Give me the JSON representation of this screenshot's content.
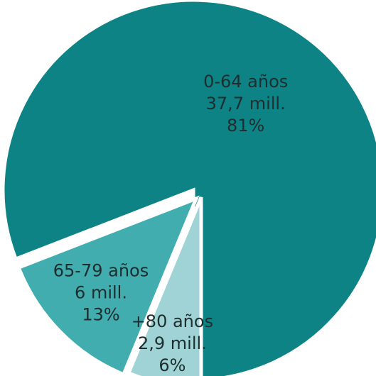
{
  "chart_data": {
    "type": "pie",
    "title": "",
    "slices": [
      {
        "category": "0-64 años",
        "value": 37.7,
        "value_label": "37,7 mill.",
        "percent_label": "81%",
        "color": "#0e8385"
      },
      {
        "category": "+80 años",
        "value": 2.9,
        "value_label": "2,9 mill.",
        "percent_label": "6%",
        "color": "#9fd3d5"
      },
      {
        "category": "65-79 años",
        "value": 6,
        "value_label": "6 mill.",
        "percent_label": "13%",
        "color": "#41adaf"
      }
    ],
    "legend": "none",
    "labels_inside_slices": true
  }
}
